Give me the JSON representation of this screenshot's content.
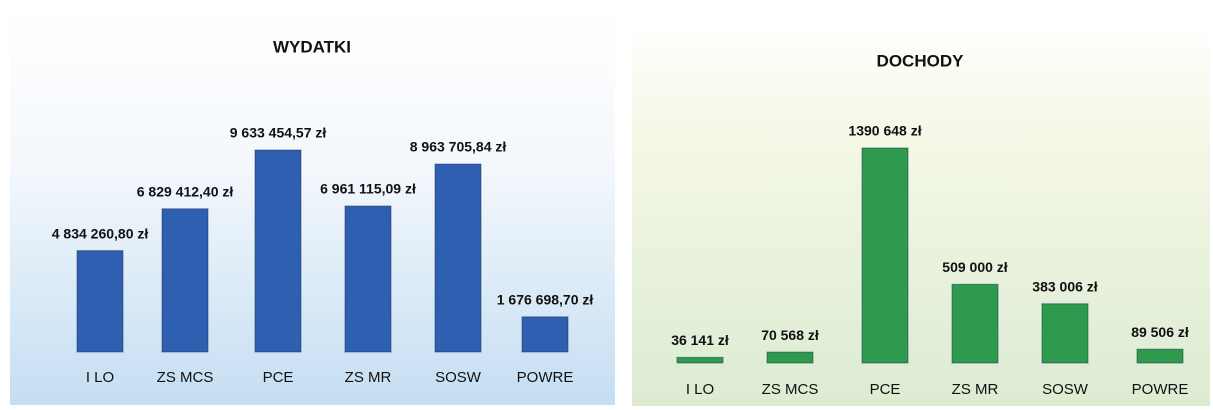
{
  "chart_data": [
    {
      "type": "bar",
      "title": "WYDATKI",
      "color": "#2f5fb0",
      "categories": [
        "I LO",
        "ZS MCS",
        "PCE",
        "ZS MR",
        "SOSW",
        "POWRE"
      ],
      "values": [
        4834260.8,
        6829412.4,
        9633454.57,
        6961115.09,
        8963705.84,
        1676698.7
      ],
      "value_labels": [
        "4 834 260,80 zł",
        "6 829 412,40 zł",
        "9 633 454,57 zł",
        "6 961 115,09 zł",
        "8 963 705,84 zł",
        "1 676 698,70 zł"
      ]
    },
    {
      "type": "bar",
      "title": "DOCHODY",
      "color": "#2e9a4e",
      "categories": [
        "I LO",
        "ZS MCS",
        "PCE",
        "ZS MR",
        "SOSW",
        "POWRE"
      ],
      "values": [
        36141,
        70568,
        1390648,
        509000,
        383006,
        89506
      ],
      "value_labels": [
        "36 141 zł",
        "70 568 zł",
        "1390 648 zł",
        "509 000 zł",
        "383 006 zł",
        "89 506 zł"
      ]
    }
  ]
}
